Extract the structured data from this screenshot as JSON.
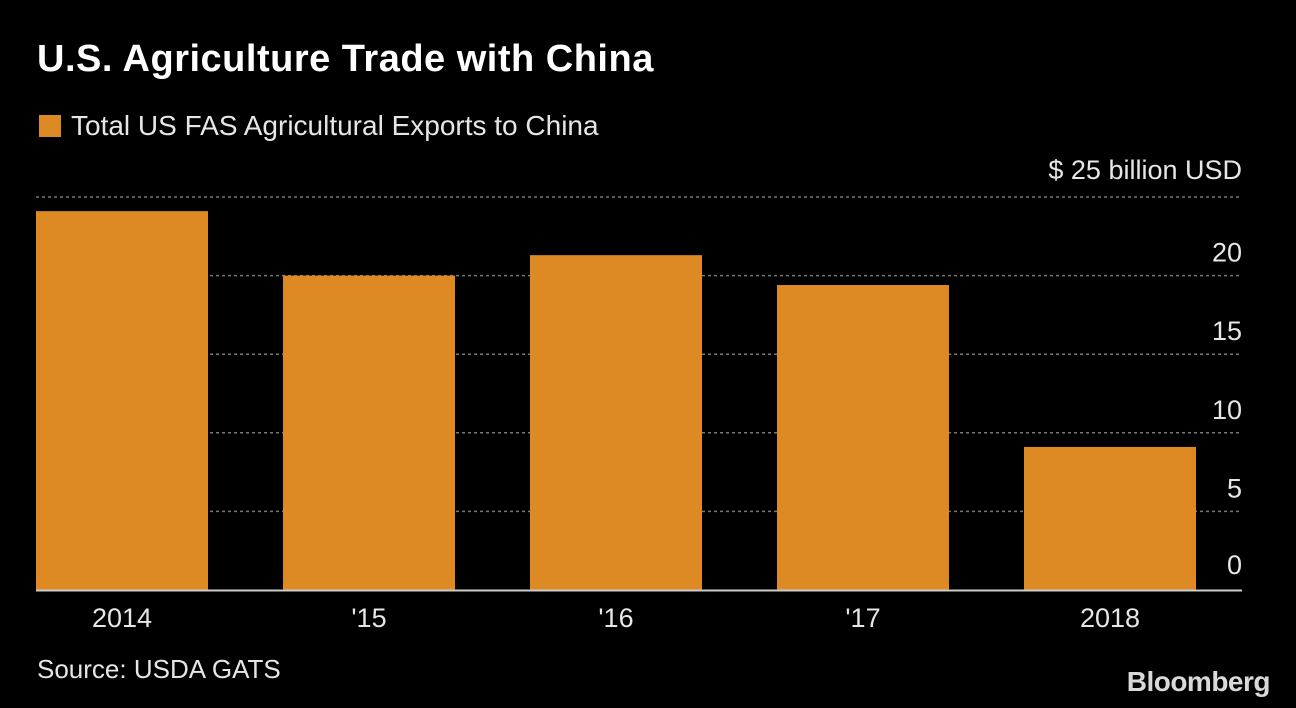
{
  "title": "U.S. Agriculture Trade with China",
  "legend": {
    "label": "Total US FAS Agricultural Exports to China"
  },
  "source": "Source: USDA GATS",
  "logo": "Bloomberg",
  "colors": {
    "background": "#000000",
    "bar": "#dd8a25",
    "grid": "#777777",
    "axis": "#cccccc"
  },
  "chart_data": {
    "type": "bar",
    "categories": [
      "2014",
      "'15",
      "'16",
      "'17",
      "2018"
    ],
    "series": [
      {
        "name": "Total US FAS Agricultural Exports to China",
        "values": [
          24.1,
          20.0,
          21.3,
          19.4,
          9.1
        ]
      }
    ],
    "ylim": [
      0,
      25
    ],
    "yticks": [
      0,
      5,
      10,
      15,
      20,
      25
    ],
    "ytick_labels": [
      "0",
      "5",
      "10",
      "15",
      "20",
      "$ 25 billion USD"
    ],
    "ylabel": "",
    "xlabel": "",
    "grid": true,
    "y_axis_side": "right"
  }
}
